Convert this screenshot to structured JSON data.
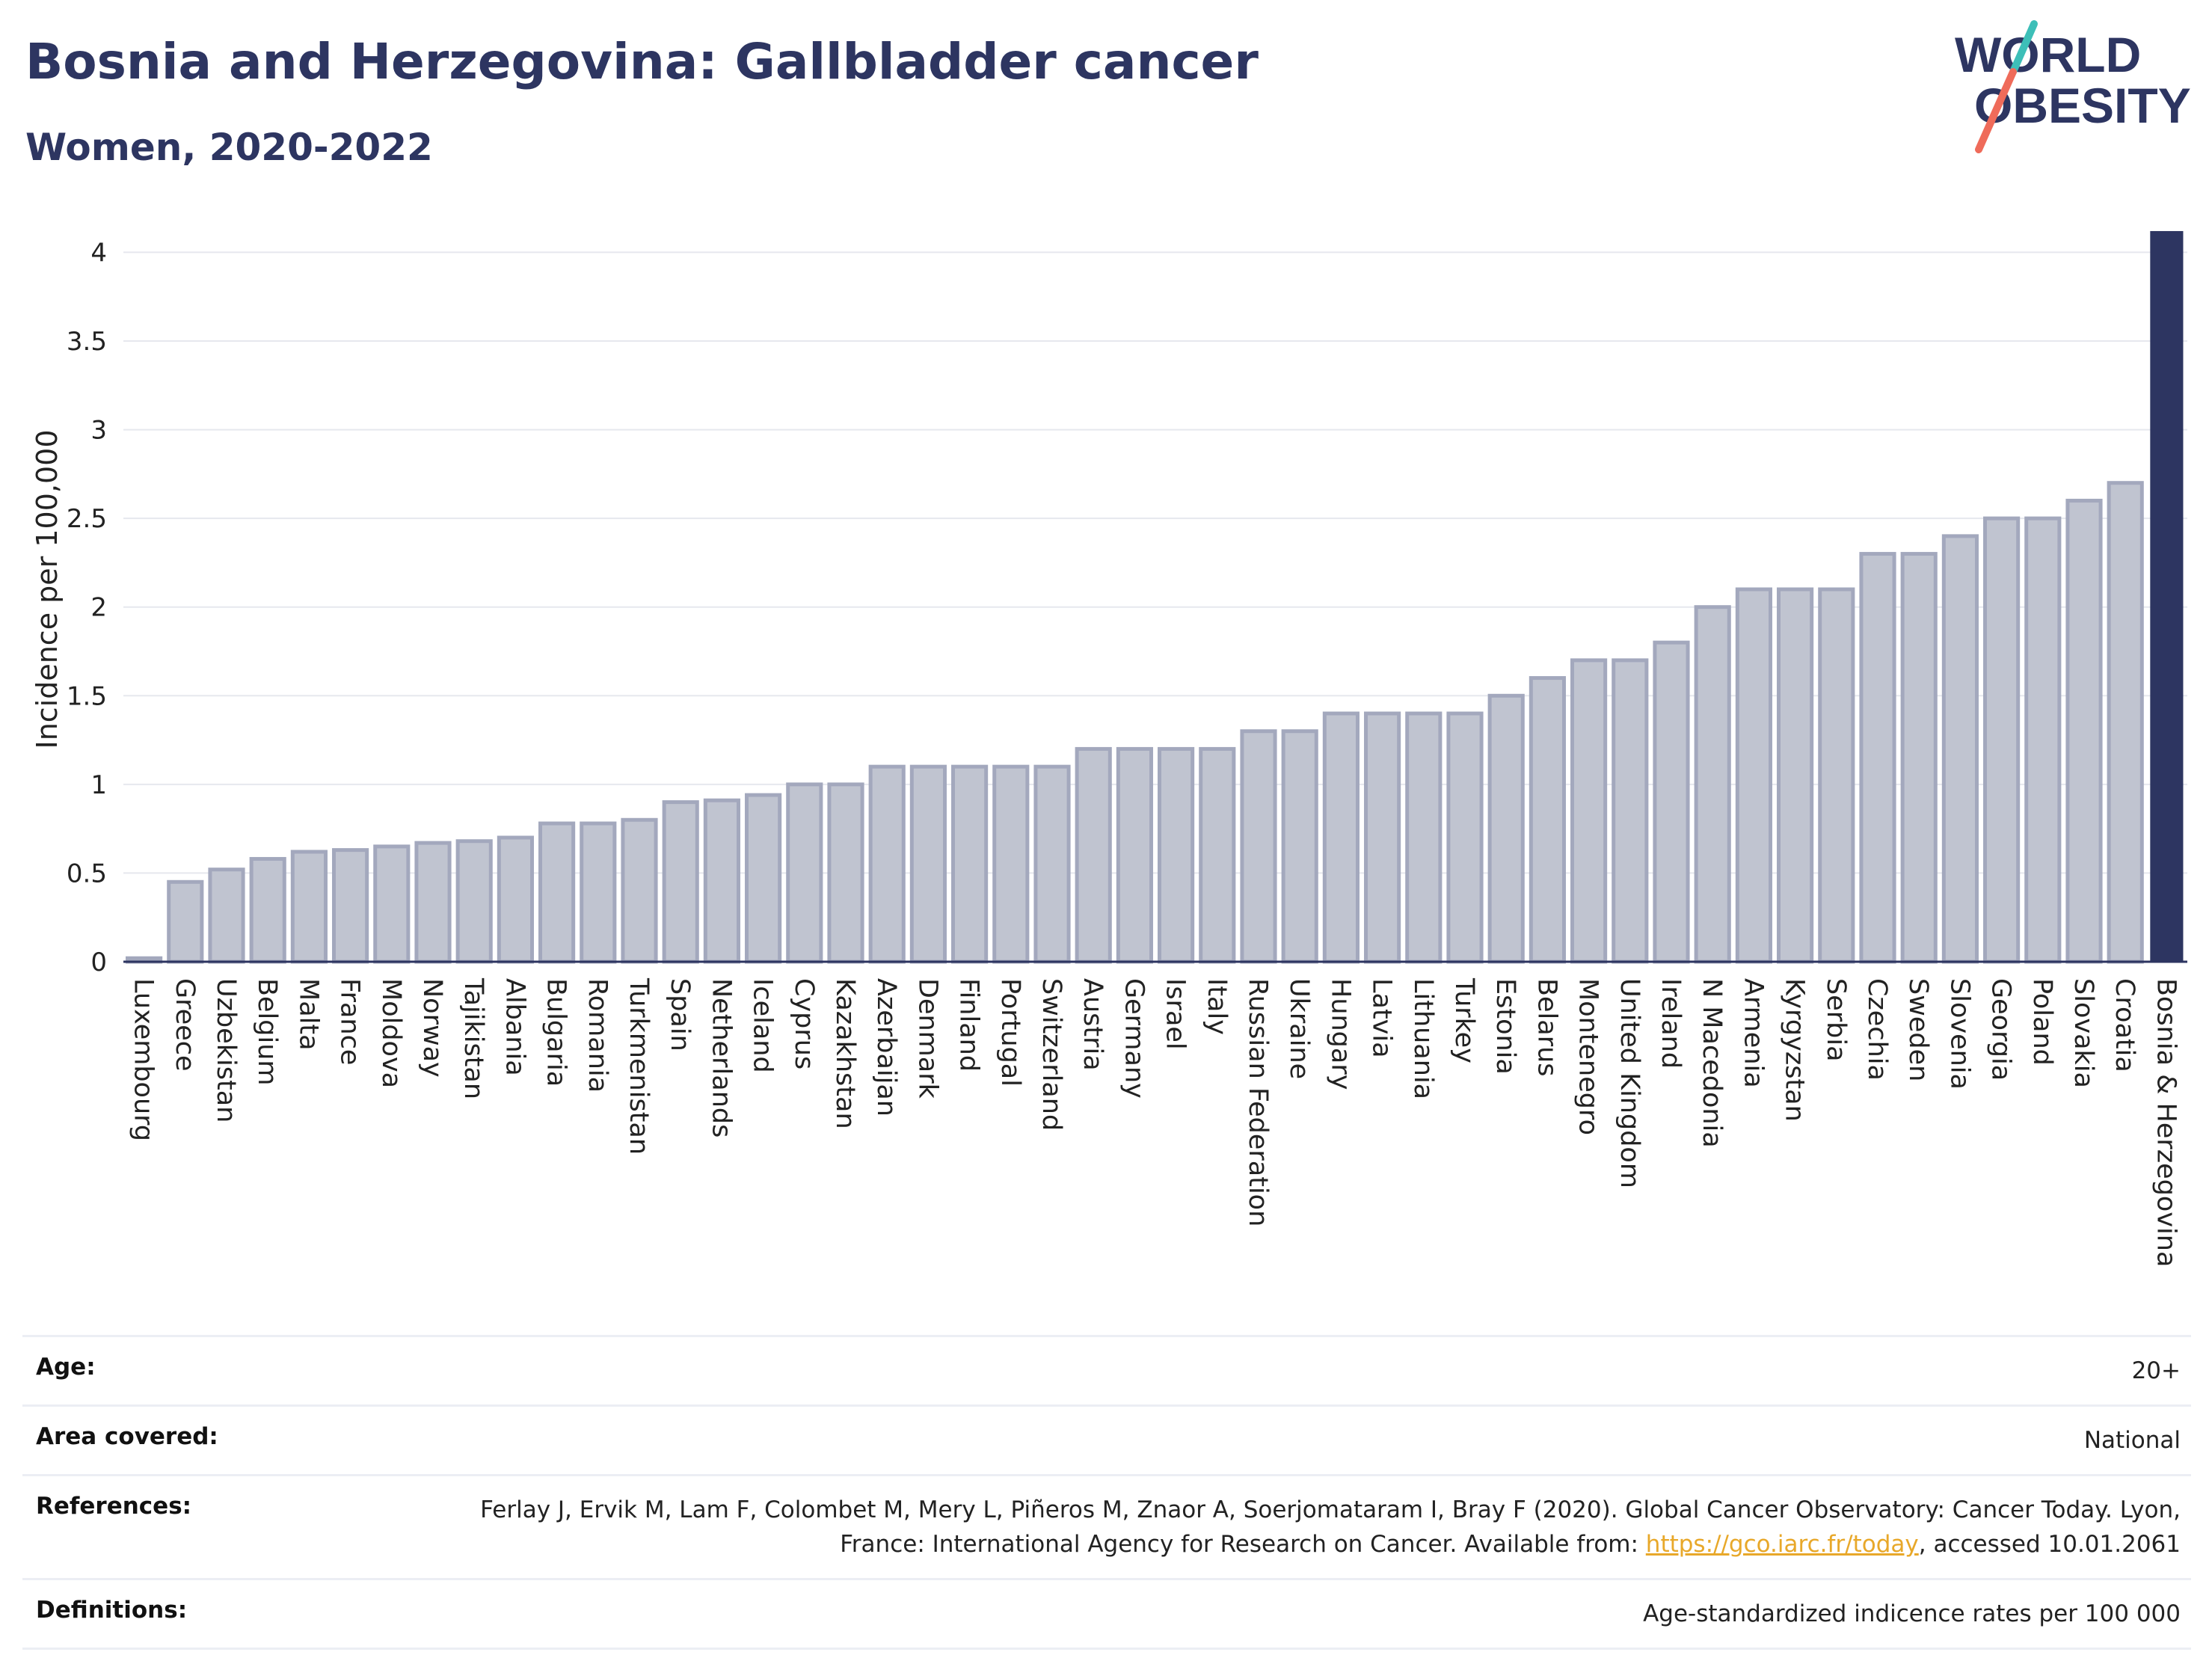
{
  "header": {
    "title": "Bosnia and Herzegovina: Gallbladder cancer",
    "subtitle": "Women, 2020-2022",
    "logo_line1": "WORLD",
    "logo_line2": "OBESITY"
  },
  "colors": {
    "highlight": "#2d3561",
    "bar_fill": "#c0c4d0",
    "bar_stroke": "#a3a8bd",
    "title": "#2d3561",
    "logo_teal": "#3dbfb8",
    "logo_coral": "#ef6b5a",
    "link": "#e8a82a"
  },
  "chart_data": {
    "type": "bar",
    "ylabel": "Incidence per 100,000",
    "ylim": [
      0,
      4.2
    ],
    "yticks": [
      0,
      0.5,
      1,
      1.5,
      2,
      2.5,
      3,
      3.5,
      4
    ],
    "ytick_labels": [
      "0",
      "0.5",
      "1",
      "1.5",
      "2",
      "2.5",
      "3",
      "3.5",
      "4"
    ],
    "grid": true,
    "highlight_category": "Bosnia & Herzegovina",
    "categories": [
      "Luxembourg",
      "Greece",
      "Uzbekistan",
      "Belgium",
      "Malta",
      "France",
      "Moldova",
      "Norway",
      "Tajikistan",
      "Albania",
      "Bulgaria",
      "Romania",
      "Turkmenistan",
      "Spain",
      "Netherlands",
      "Iceland",
      "Cyprus",
      "Kazakhstan",
      "Azerbaijan",
      "Denmark",
      "Finland",
      "Portugal",
      "Switzerland",
      "Austria",
      "Germany",
      "Israel",
      "Italy",
      "Russian Federation",
      "Ukraine",
      "Hungary",
      "Latvia",
      "Lithuania",
      "Turkey",
      "Estonia",
      "Belarus",
      "Montenegro",
      "United Kingdom",
      "Ireland",
      "N Macedonia",
      "Armenia",
      "Kyrgyzstan",
      "Serbia",
      "Czechia",
      "Sweden",
      "Slovenia",
      "Georgia",
      "Poland",
      "Slovakia",
      "Croatia",
      "Bosnia & Herzegovina"
    ],
    "values": [
      0.02,
      0.45,
      0.52,
      0.58,
      0.62,
      0.63,
      0.65,
      0.67,
      0.68,
      0.7,
      0.78,
      0.78,
      0.8,
      0.9,
      0.91,
      0.94,
      1.0,
      1.0,
      1.1,
      1.1,
      1.1,
      1.1,
      1.1,
      1.2,
      1.2,
      1.2,
      1.2,
      1.3,
      1.3,
      1.4,
      1.4,
      1.4,
      1.4,
      1.5,
      1.6,
      1.7,
      1.7,
      1.8,
      2.0,
      2.1,
      2.1,
      2.1,
      2.3,
      2.3,
      2.4,
      2.5,
      2.5,
      2.6,
      2.7,
      4.12
    ]
  },
  "meta": {
    "age_label": "Age:",
    "age_value": "20+",
    "area_label": "Area covered:",
    "area_value": "National",
    "references_label": "References:",
    "references_text": "Ferlay J, Ervik M, Lam F, Colombet M, Mery L, Piñeros M, Znaor A, Soerjomataram I, Bray F (2020). Global Cancer Observatory: Cancer Today. Lyon, France: International Agency for Research on Cancer. Available from: ",
    "references_link": "https://gco.iarc.fr/today",
    "references_suffix": ", accessed 10.01.2061",
    "definitions_label": "Definitions:",
    "definitions_value": "Age-standardized indicence rates per 100 000"
  }
}
